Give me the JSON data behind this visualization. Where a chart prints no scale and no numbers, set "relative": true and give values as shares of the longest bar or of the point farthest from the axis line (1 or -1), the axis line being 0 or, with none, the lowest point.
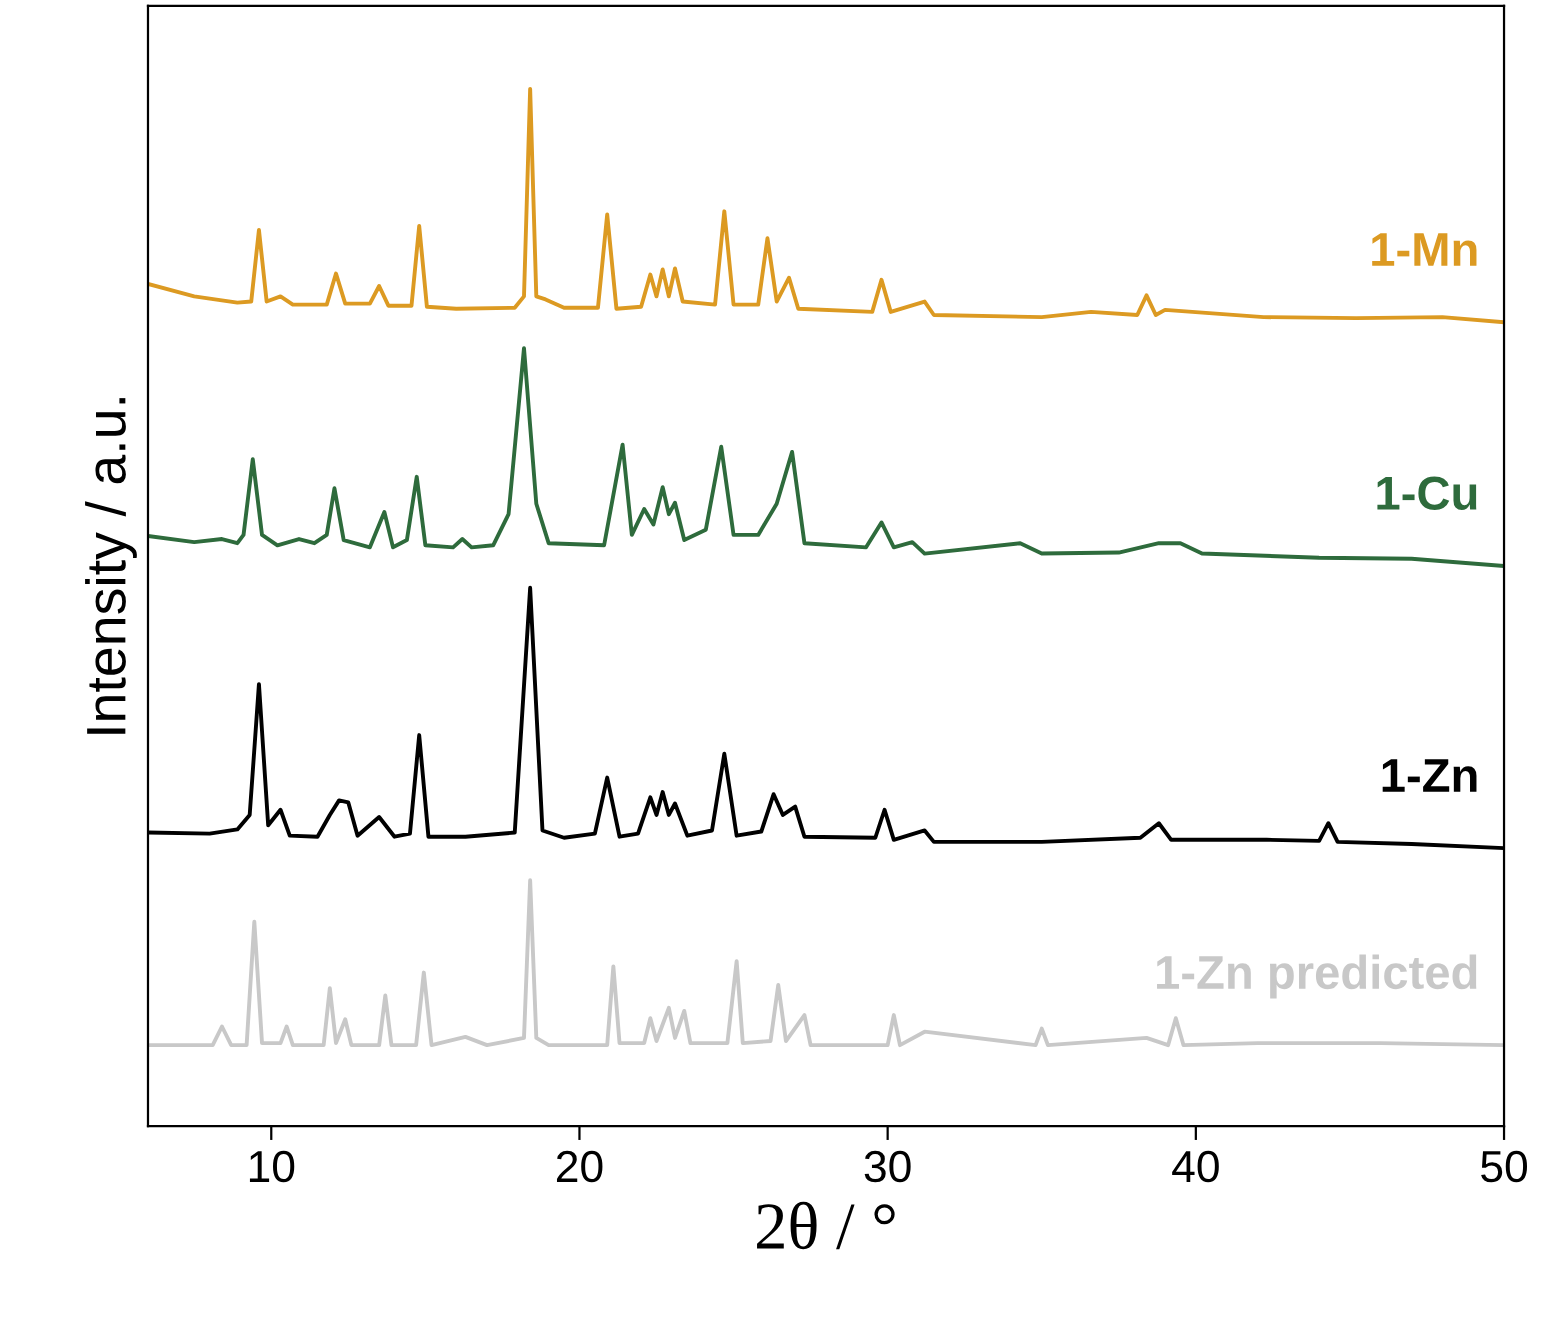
{
  "chart_data": {
    "type": "line",
    "relative": true,
    "xlabel": "2θ / °",
    "ylabel": "Intensity / a.u.",
    "xlim": [
      6,
      50
    ],
    "xticks": [
      10,
      20,
      30,
      40,
      50
    ],
    "grid": false,
    "legend": false,
    "marker": "none",
    "line_style": "solid",
    "series": [
      {
        "name": "1-Mn",
        "color": "#dc9a22",
        "x": [
          6.0,
          7.5,
          8.9,
          9.35,
          9.6,
          9.85,
          10.3,
          10.7,
          11.8,
          12.1,
          12.4,
          13.2,
          13.5,
          13.8,
          14.55,
          14.8,
          15.05,
          16.0,
          17.9,
          18.2,
          18.4,
          18.6,
          18.9,
          19.5,
          20.6,
          20.9,
          21.2,
          22.0,
          22.3,
          22.5,
          22.7,
          22.9,
          23.1,
          23.35,
          24.4,
          24.7,
          25.0,
          25.8,
          26.1,
          26.4,
          26.8,
          27.1,
          29.5,
          29.8,
          30.1,
          31.2,
          31.5,
          35.0,
          36.6,
          38.1,
          38.4,
          38.7,
          39.0,
          42.2,
          45.2,
          48.0,
          50
        ],
        "values": [
          0.812,
          0.8,
          0.794,
          0.795,
          0.864,
          0.795,
          0.8,
          0.792,
          0.792,
          0.822,
          0.793,
          0.793,
          0.81,
          0.791,
          0.791,
          0.868,
          0.79,
          0.788,
          0.789,
          0.8,
          1.0,
          0.8,
          0.797,
          0.789,
          0.789,
          0.879,
          0.788,
          0.79,
          0.821,
          0.8,
          0.826,
          0.8,
          0.827,
          0.795,
          0.792,
          0.882,
          0.792,
          0.792,
          0.856,
          0.795,
          0.818,
          0.788,
          0.785,
          0.816,
          0.785,
          0.795,
          0.782,
          0.78,
          0.785,
          0.782,
          0.801,
          0.782,
          0.787,
          0.78,
          0.779,
          0.78,
          0.775
        ]
      },
      {
        "name": "1-Cu",
        "color": "#2e6b3c",
        "x": [
          6.0,
          7.5,
          8.4,
          8.9,
          9.1,
          9.4,
          9.7,
          10.2,
          10.9,
          11.4,
          11.8,
          12.05,
          12.35,
          13.2,
          13.67,
          13.95,
          14.4,
          14.72,
          15.0,
          15.9,
          16.2,
          16.5,
          17.2,
          17.7,
          18.2,
          18.6,
          19.0,
          20.8,
          21.4,
          21.7,
          22.1,
          22.4,
          22.7,
          22.9,
          23.1,
          23.4,
          24.1,
          24.6,
          25.0,
          25.8,
          26.4,
          26.9,
          27.3,
          29.3,
          29.8,
          30.2,
          30.8,
          31.2,
          34.3,
          35.0,
          37.5,
          38.8,
          39.5,
          40.2,
          44.0,
          47.0,
          50
        ],
        "values": [
          0.569,
          0.563,
          0.566,
          0.562,
          0.57,
          0.643,
          0.57,
          0.56,
          0.566,
          0.562,
          0.57,
          0.615,
          0.565,
          0.558,
          0.592,
          0.558,
          0.565,
          0.626,
          0.56,
          0.558,
          0.566,
          0.558,
          0.56,
          0.59,
          0.75,
          0.6,
          0.562,
          0.56,
          0.657,
          0.57,
          0.595,
          0.58,
          0.616,
          0.59,
          0.601,
          0.565,
          0.575,
          0.655,
          0.57,
          0.57,
          0.6,
          0.65,
          0.562,
          0.558,
          0.582,
          0.558,
          0.563,
          0.552,
          0.562,
          0.552,
          0.553,
          0.562,
          0.562,
          0.552,
          0.548,
          0.547,
          0.54
        ]
      },
      {
        "name": "1-Zn",
        "color": "#000000",
        "x": [
          6.0,
          8.0,
          8.9,
          9.3,
          9.6,
          9.9,
          10.3,
          10.6,
          11.5,
          11.9,
          12.2,
          12.5,
          12.8,
          13.5,
          14.0,
          14.5,
          14.8,
          15.1,
          16.3,
          17.9,
          18.4,
          18.8,
          19.5,
          20.5,
          20.9,
          21.3,
          21.9,
          22.3,
          22.5,
          22.7,
          22.9,
          23.1,
          23.5,
          24.3,
          24.7,
          25.1,
          25.9,
          26.3,
          26.6,
          27.0,
          27.3,
          29.6,
          29.9,
          30.2,
          31.2,
          31.5,
          35.0,
          38.2,
          38.8,
          39.2,
          42.3,
          44.0,
          44.3,
          44.6,
          47.0,
          50
        ],
        "values": [
          0.283,
          0.282,
          0.286,
          0.3,
          0.426,
          0.29,
          0.305,
          0.28,
          0.279,
          0.3,
          0.314,
          0.312,
          0.28,
          0.298,
          0.279,
          0.282,
          0.377,
          0.279,
          0.279,
          0.283,
          0.519,
          0.285,
          0.278,
          0.282,
          0.336,
          0.279,
          0.282,
          0.317,
          0.3,
          0.322,
          0.3,
          0.311,
          0.28,
          0.285,
          0.359,
          0.28,
          0.284,
          0.32,
          0.3,
          0.308,
          0.279,
          0.278,
          0.305,
          0.276,
          0.285,
          0.274,
          0.274,
          0.278,
          0.292,
          0.276,
          0.276,
          0.275,
          0.292,
          0.274,
          0.272,
          0.268
        ]
      },
      {
        "name": "1-Zn predicted",
        "color": "#c8c8c8",
        "x": [
          6.0,
          8.1,
          8.4,
          8.7,
          9.2,
          9.45,
          9.7,
          10.3,
          10.5,
          10.7,
          11.7,
          11.9,
          12.1,
          12.4,
          12.6,
          13.5,
          13.7,
          13.9,
          14.7,
          14.95,
          15.2,
          16.3,
          17.0,
          18.2,
          18.4,
          18.6,
          19.0,
          20.9,
          21.1,
          21.3,
          22.1,
          22.3,
          22.5,
          22.9,
          23.1,
          23.4,
          23.6,
          24.8,
          25.1,
          25.3,
          26.2,
          26.45,
          26.7,
          27.3,
          27.5,
          30.0,
          30.2,
          30.4,
          31.2,
          34.8,
          35.0,
          35.2,
          38.4,
          39.1,
          39.35,
          39.6,
          42.0,
          46.0,
          50
        ],
        "values": [
          0.078,
          0.078,
          0.096,
          0.078,
          0.078,
          0.197,
          0.08,
          0.08,
          0.096,
          0.078,
          0.078,
          0.133,
          0.08,
          0.103,
          0.078,
          0.078,
          0.126,
          0.078,
          0.078,
          0.148,
          0.078,
          0.086,
          0.078,
          0.085,
          0.237,
          0.085,
          0.078,
          0.078,
          0.154,
          0.08,
          0.08,
          0.104,
          0.082,
          0.114,
          0.085,
          0.111,
          0.08,
          0.08,
          0.159,
          0.08,
          0.082,
          0.136,
          0.082,
          0.107,
          0.078,
          0.078,
          0.107,
          0.078,
          0.091,
          0.078,
          0.094,
          0.078,
          0.085,
          0.078,
          0.104,
          0.078,
          0.08,
          0.08,
          0.078
        ]
      }
    ]
  }
}
